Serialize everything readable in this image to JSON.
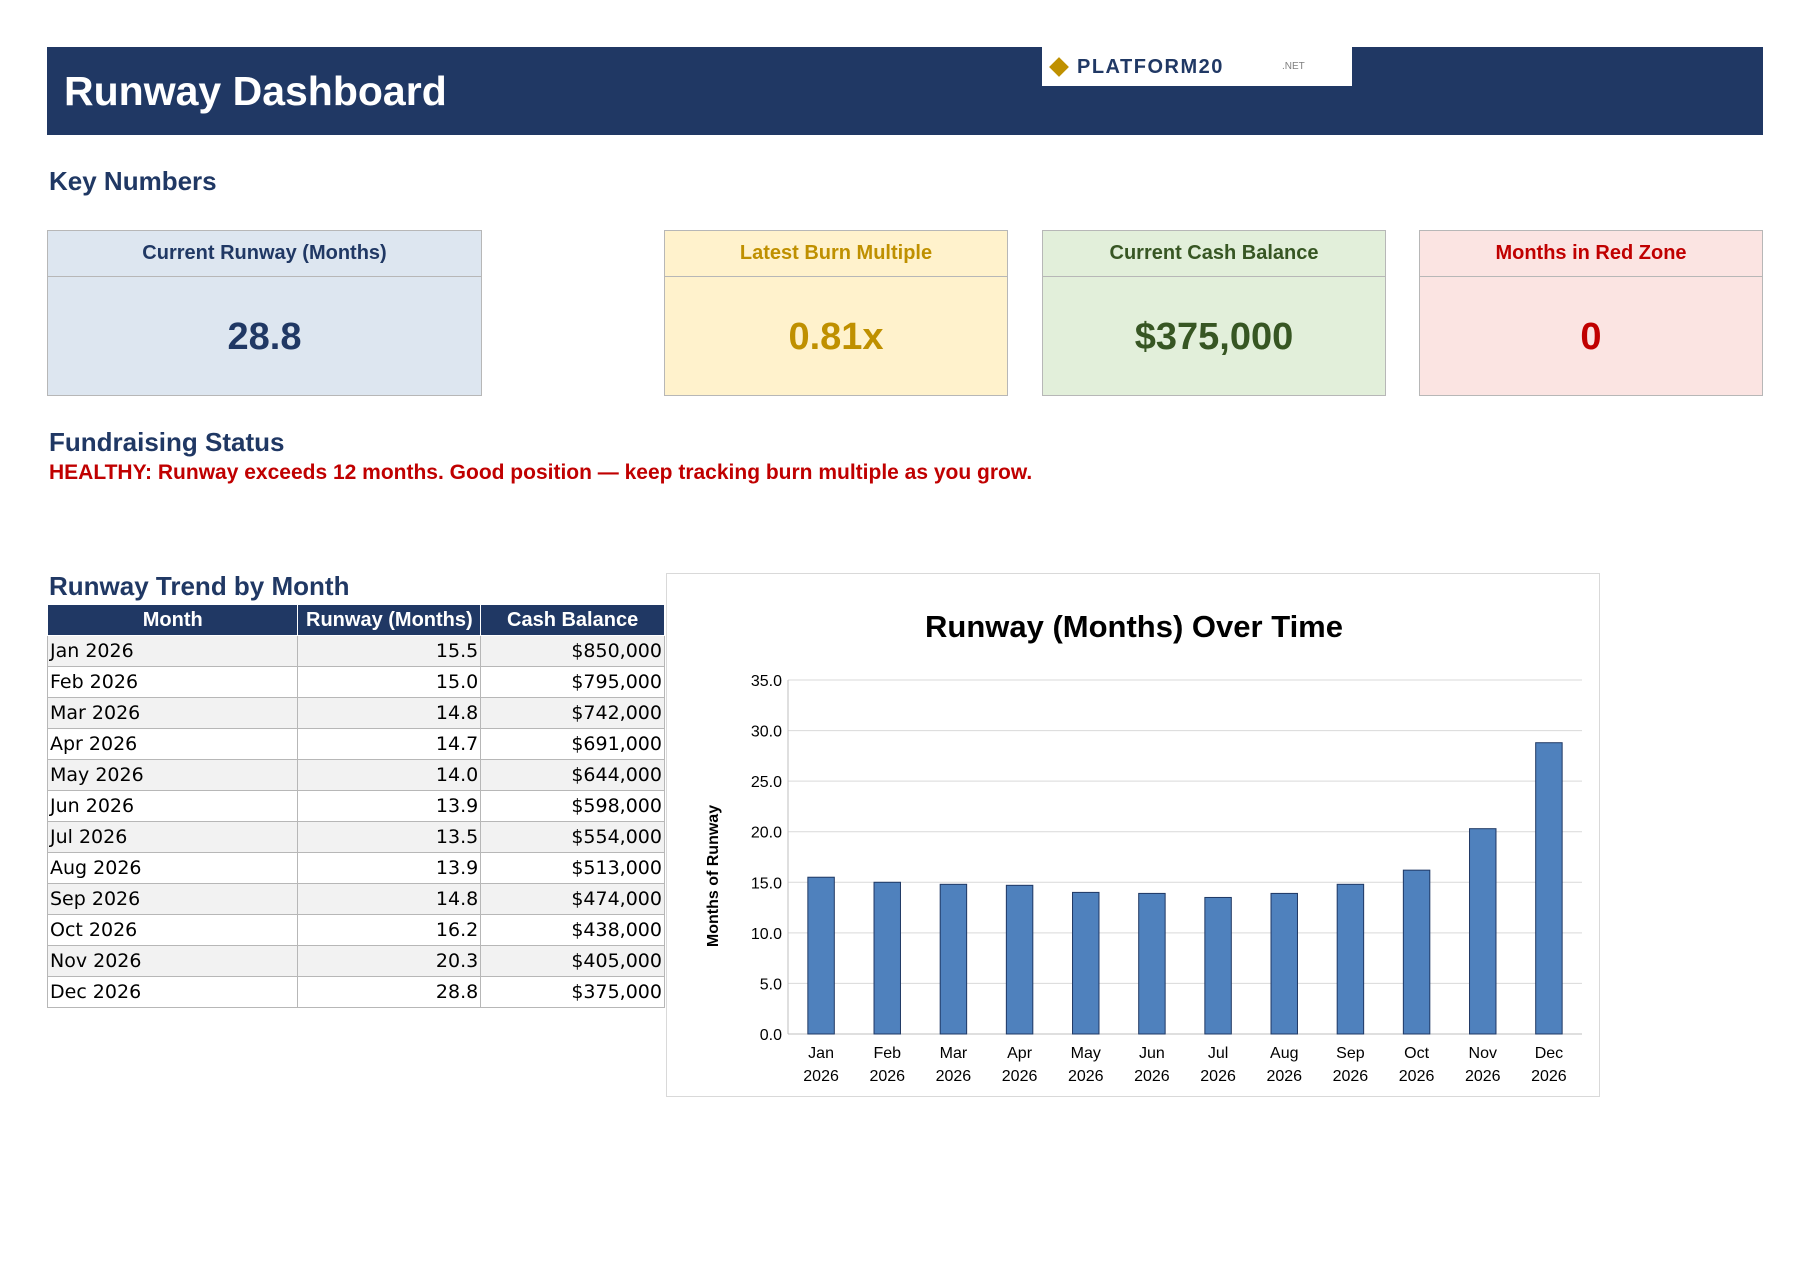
{
  "header": {
    "title": "Runway Dashboard",
    "logo_text": "PLATFORM20",
    "logo_suffix": ".NET",
    "brand_color": "#203864",
    "logo_accent": "#bf9000"
  },
  "key_numbers": {
    "heading": "Key Numbers",
    "cards": [
      {
        "label": "Current Runway (Months)",
        "value": "28.8",
        "color": "#203864",
        "background": "#dde6f0"
      },
      {
        "label": "Latest Burn Multiple",
        "value": "0.81x",
        "color": "#bf9000",
        "background": "#fff2cc"
      },
      {
        "label": "Current Cash Balance",
        "value": "$375,000",
        "color": "#375623",
        "background": "#e2efda"
      },
      {
        "label": "Months in Red Zone",
        "value": "0",
        "color": "#c00000",
        "background": "#fbe4e2"
      }
    ]
  },
  "fundraising": {
    "heading": "Fundraising Status",
    "status": "HEALTHY: Runway exceeds 12 months. Good position — keep tracking burn multiple as you grow.",
    "status_color": "#c00000"
  },
  "trend": {
    "heading": "Runway Trend by Month",
    "columns": [
      "Month",
      "Runway (Months)",
      "Cash Balance"
    ],
    "rows": [
      [
        "Jan 2026",
        "15.5",
        "$850,000"
      ],
      [
        "Feb 2026",
        "15.0",
        "$795,000"
      ],
      [
        "Mar 2026",
        "14.8",
        "$742,000"
      ],
      [
        "Apr 2026",
        "14.7",
        "$691,000"
      ],
      [
        "May 2026",
        "14.0",
        "$644,000"
      ],
      [
        "Jun 2026",
        "13.9",
        "$598,000"
      ],
      [
        "Jul 2026",
        "13.5",
        "$554,000"
      ],
      [
        "Aug 2026",
        "13.9",
        "$513,000"
      ],
      [
        "Sep 2026",
        "14.8",
        "$474,000"
      ],
      [
        "Oct 2026",
        "16.2",
        "$438,000"
      ],
      [
        "Nov 2026",
        "20.3",
        "$405,000"
      ],
      [
        "Dec 2026",
        "28.8",
        "$375,000"
      ]
    ]
  },
  "chart_data": {
    "type": "bar",
    "title": "Runway (Months) Over Time",
    "xlabel": "",
    "ylabel": "Months of Runway",
    "categories": [
      "Jan 2026",
      "Feb 2026",
      "Mar 2026",
      "Apr 2026",
      "May 2026",
      "Jun 2026",
      "Jul 2026",
      "Aug 2026",
      "Sep 2026",
      "Oct 2026",
      "Nov 2026",
      "Dec 2026"
    ],
    "values": [
      15.5,
      15.0,
      14.8,
      14.7,
      14.0,
      13.9,
      13.5,
      13.9,
      14.8,
      16.2,
      20.3,
      28.8
    ],
    "ylim": [
      0,
      35
    ],
    "yticks": [
      "0.0",
      "5.0",
      "10.0",
      "15.0",
      "20.0",
      "25.0",
      "30.0",
      "35.0"
    ],
    "grid": true,
    "legend": "none",
    "bar_color": "#4f81bd"
  }
}
